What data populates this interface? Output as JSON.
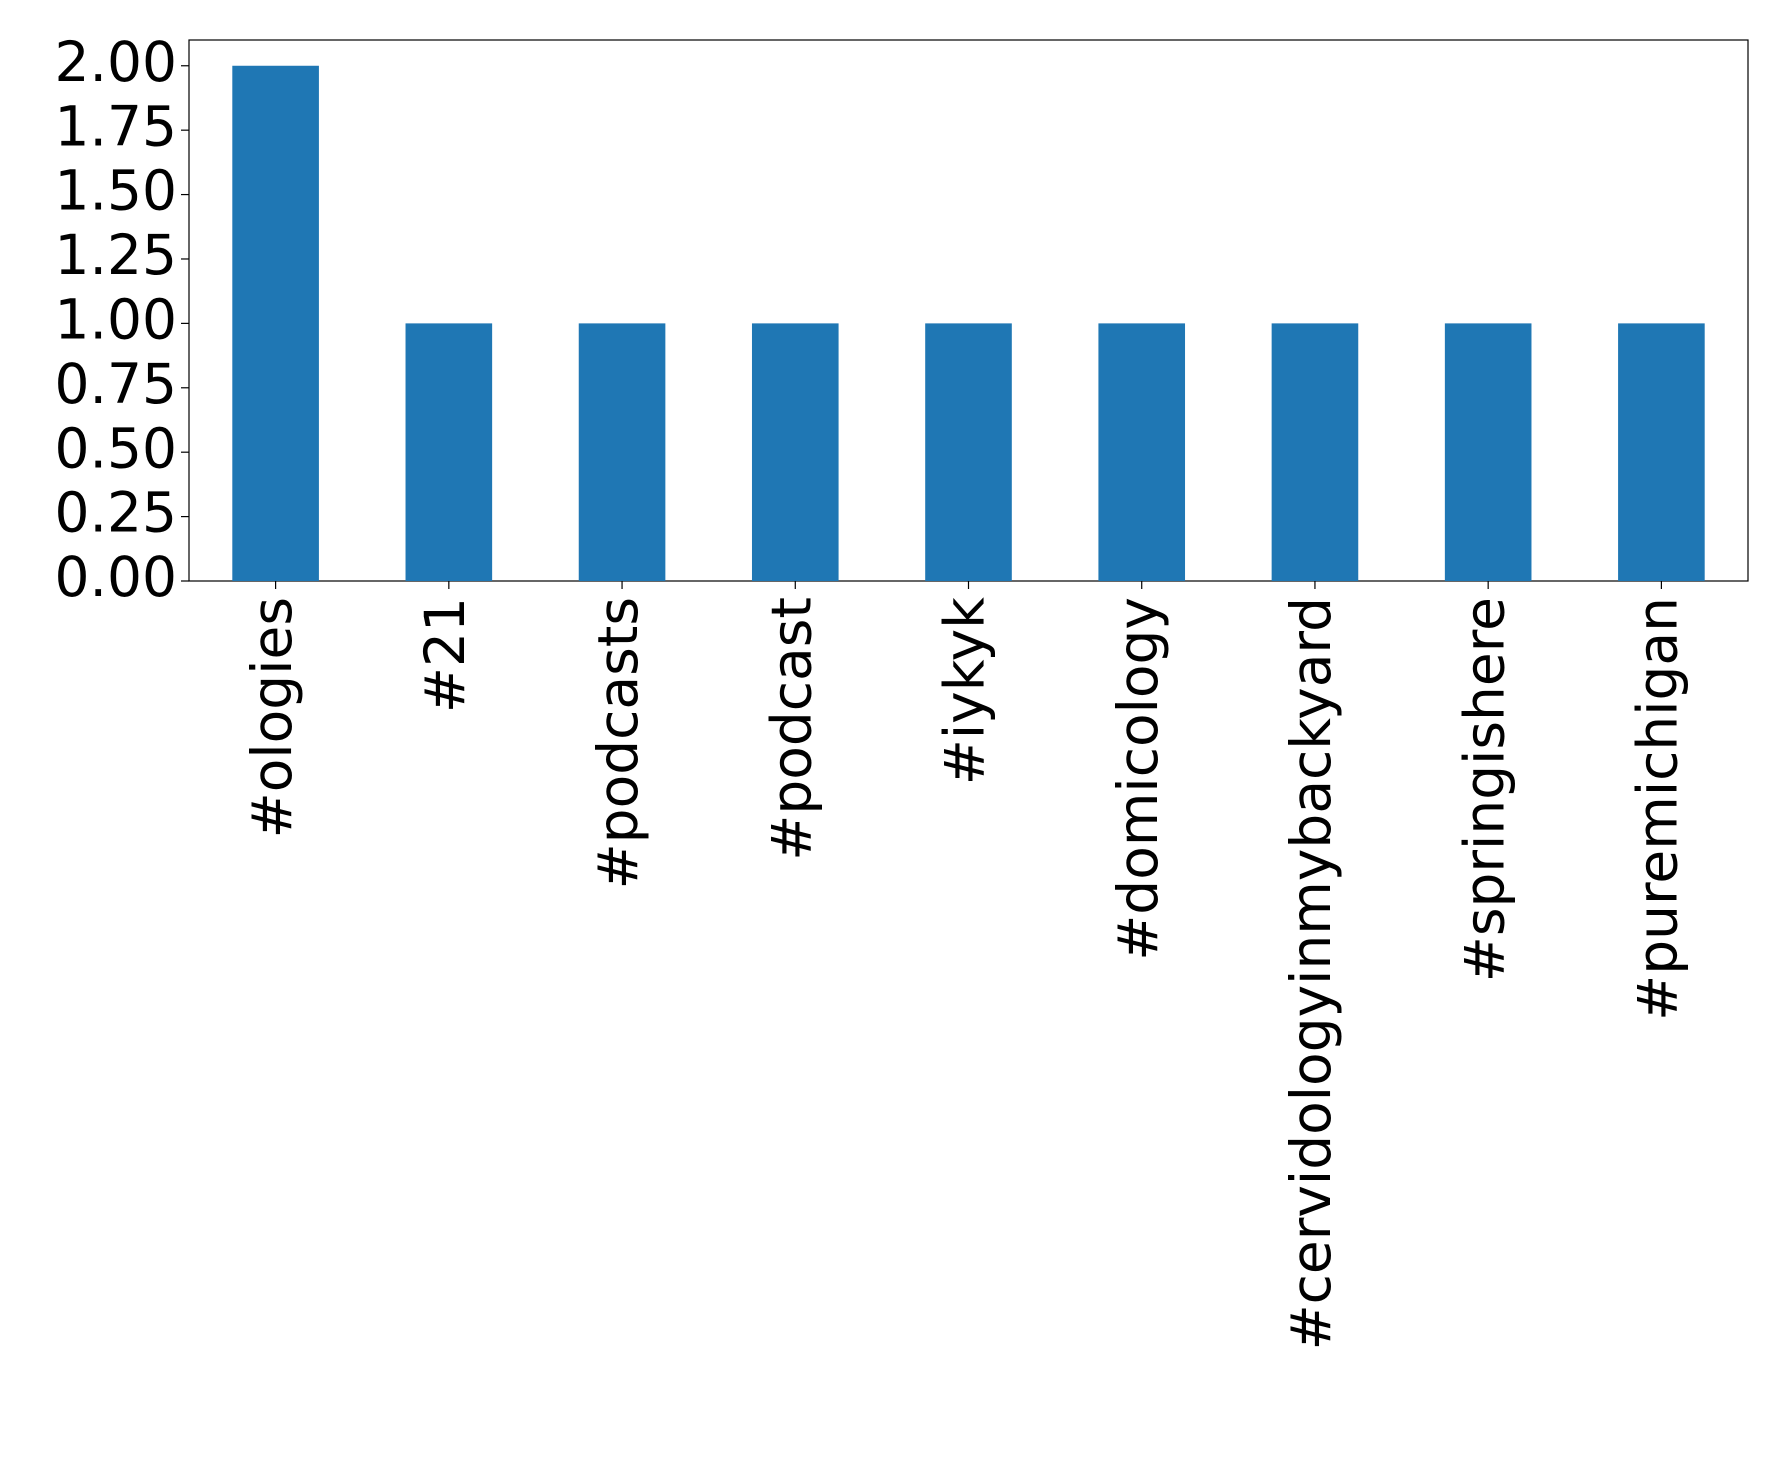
{
  "chart_data": {
    "type": "bar",
    "categories": [
      "#ologies",
      "#21",
      "#podcasts",
      "#podcast",
      "#iykyk",
      "#domicology",
      "#cervidologyinmybackyard",
      "#springishere",
      "#puremichigan"
    ],
    "values": [
      2,
      1,
      1,
      1,
      1,
      1,
      1,
      1,
      1
    ],
    "color": "#1f77b4",
    "ylim": [
      0,
      2.1
    ],
    "yticks": [
      {
        "value": 0,
        "label": "0.00"
      },
      {
        "value": 0.25,
        "label": "0.25"
      },
      {
        "value": 0.5,
        "label": "0.50"
      },
      {
        "value": 0.75,
        "label": "0.75"
      },
      {
        "value": 1,
        "label": "1.00"
      },
      {
        "value": 1.25,
        "label": "1.25"
      },
      {
        "value": 1.5,
        "label": "1.50"
      },
      {
        "value": 1.75,
        "label": "1.75"
      },
      {
        "value": 2,
        "label": "2.00"
      }
    ],
    "grid": false
  }
}
